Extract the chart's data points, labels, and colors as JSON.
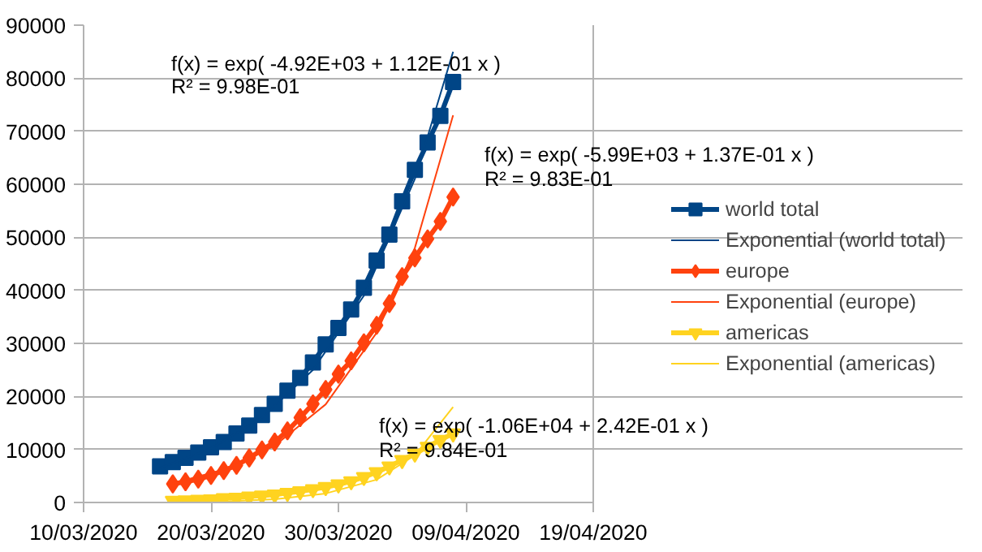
{
  "chart_data": {
    "type": "line",
    "xlim": [
      "2020-03-10",
      "2020-04-19"
    ],
    "xticks": [
      {
        "value": "2020-03-10",
        "label": "10/03/2020"
      },
      {
        "value": "2020-03-20",
        "label": "20/03/2020"
      },
      {
        "value": "2020-03-30",
        "label": "30/03/2020"
      },
      {
        "value": "2020-04-09",
        "label": "09/04/2020"
      },
      {
        "value": "2020-04-19",
        "label": "19/04/2020"
      }
    ],
    "ylim": [
      0,
      90000
    ],
    "yticks": [
      0,
      10000,
      20000,
      30000,
      40000,
      50000,
      60000,
      70000,
      80000,
      90000
    ],
    "grid": "y",
    "legend": "right",
    "series": [
      {
        "name": "world total",
        "color": "#004586",
        "marker": "square",
        "x": [
          "2020-03-16",
          "2020-03-17",
          "2020-03-18",
          "2020-03-19",
          "2020-03-20",
          "2020-03-21",
          "2020-03-22",
          "2020-03-23",
          "2020-03-24",
          "2020-03-25",
          "2020-03-26",
          "2020-03-27",
          "2020-03-28",
          "2020-03-29",
          "2020-03-30",
          "2020-03-31",
          "2020-04-01",
          "2020-04-02",
          "2020-04-03",
          "2020-04-04",
          "2020-04-05",
          "2020-04-06",
          "2020-04-07",
          "2020-04-08"
        ],
        "values": [
          6800,
          7600,
          8400,
          9400,
          10400,
          11400,
          13000,
          14500,
          16500,
          18600,
          21100,
          23500,
          26400,
          29800,
          32900,
          36400,
          40500,
          45600,
          50500,
          56800,
          62700,
          67900,
          72900,
          79300
        ]
      },
      {
        "name": "Exponential (world total)",
        "color": "#004586",
        "marker": "none",
        "x": [
          "2020-03-16",
          "2020-03-20",
          "2020-03-24",
          "2020-03-28",
          "2020-04-01",
          "2020-04-05",
          "2020-04-08"
        ],
        "values": [
          6500,
          10200,
          16000,
          25000,
          39000,
          61000,
          85000
        ]
      },
      {
        "name": "europe",
        "color": "#ff420e",
        "marker": "diamond",
        "x": [
          "2020-03-17",
          "2020-03-18",
          "2020-03-19",
          "2020-03-20",
          "2020-03-21",
          "2020-03-22",
          "2020-03-23",
          "2020-03-24",
          "2020-03-25",
          "2020-03-26",
          "2020-03-27",
          "2020-03-28",
          "2020-03-29",
          "2020-03-30",
          "2020-03-31",
          "2020-04-01",
          "2020-04-02",
          "2020-04-03",
          "2020-04-04",
          "2020-04-05",
          "2020-04-06",
          "2020-04-07",
          "2020-04-08"
        ],
        "values": [
          3500,
          3900,
          4400,
          5100,
          6000,
          7000,
          8400,
          9900,
          11400,
          13500,
          16000,
          18600,
          21300,
          24200,
          26700,
          30100,
          33400,
          37500,
          42600,
          46100,
          49700,
          53000,
          57600
        ]
      },
      {
        "name": "Exponential (europe)",
        "color": "#ff420e",
        "marker": "none",
        "x": [
          "2020-03-17",
          "2020-03-21",
          "2020-03-25",
          "2020-03-29",
          "2020-04-02",
          "2020-04-05",
          "2020-04-08"
        ],
        "values": [
          3600,
          6200,
          10700,
          18500,
          32000,
          48000,
          73000
        ]
      },
      {
        "name": "americas",
        "color": "#ffd320",
        "marker": "triangle",
        "x": [
          "2020-03-17",
          "2020-03-18",
          "2020-03-19",
          "2020-03-20",
          "2020-03-21",
          "2020-03-22",
          "2020-03-23",
          "2020-03-24",
          "2020-03-25",
          "2020-03-26",
          "2020-03-27",
          "2020-03-28",
          "2020-03-29",
          "2020-03-30",
          "2020-03-31",
          "2020-04-01",
          "2020-04-02",
          "2020-04-03",
          "2020-04-04",
          "2020-04-05",
          "2020-04-06",
          "2020-04-07",
          "2020-04-08"
        ],
        "values": [
          300,
          400,
          500,
          600,
          800,
          900,
          1100,
          1300,
          1500,
          1800,
          2100,
          2500,
          2900,
          3400,
          4000,
          4800,
          5700,
          6800,
          8000,
          9200,
          10500,
          11800,
          13000
        ]
      },
      {
        "name": "Exponential (americas)",
        "color": "#ffd320",
        "marker": "none",
        "x": [
          "2020-03-17",
          "2020-03-21",
          "2020-03-25",
          "2020-03-29",
          "2020-04-02",
          "2020-04-05",
          "2020-04-08"
        ],
        "values": [
          100,
          200,
          600,
          1700,
          4300,
          8900,
          18000
        ]
      }
    ],
    "annotations": [
      "f(x) = exp( -4.92E+03 + 1.12E-01 x )",
      "R² = 9.98E-01",
      "f(x) = exp( -5.99E+03 + 1.37E-01 x )",
      "R² = 9.83E-01",
      "f(x) = exp( -1.06E+04 + 2.42E-01 x )",
      "R² = 9.84E-01"
    ]
  }
}
